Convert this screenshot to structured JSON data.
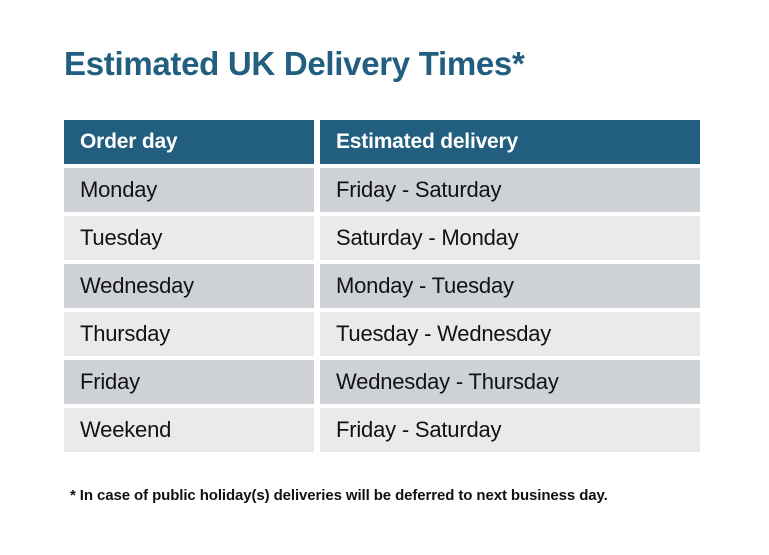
{
  "title": {
    "text": "Estimated UK Delivery Times*"
  },
  "colors": {
    "accent_teal": "#215e7f",
    "header_text": "#ffffff",
    "row_dark": "#ced2d6",
    "row_light": "#e8eaec",
    "body_text": "#121212",
    "page_background": "#ffffff"
  },
  "table": {
    "columns": [
      {
        "label": "Order day"
      },
      {
        "label": "Estimated delivery"
      }
    ],
    "rows": [
      {
        "order_day": "Monday",
        "estimated_delivery": "Friday - Saturday"
      },
      {
        "order_day": "Tuesday",
        "estimated_delivery": "Saturday - Monday"
      },
      {
        "order_day": "Wednesday",
        "estimated_delivery": "Monday - Tuesday"
      },
      {
        "order_day": "Thursday",
        "estimated_delivery": "Tuesday - Wednesday"
      },
      {
        "order_day": "Friday",
        "estimated_delivery": "Wednesday - Thursday"
      },
      {
        "order_day": "Weekend",
        "estimated_delivery": "Friday - Saturday"
      }
    ]
  },
  "footnote": {
    "text": "* In case of public holiday(s) deliveries will be deferred to next business day."
  }
}
